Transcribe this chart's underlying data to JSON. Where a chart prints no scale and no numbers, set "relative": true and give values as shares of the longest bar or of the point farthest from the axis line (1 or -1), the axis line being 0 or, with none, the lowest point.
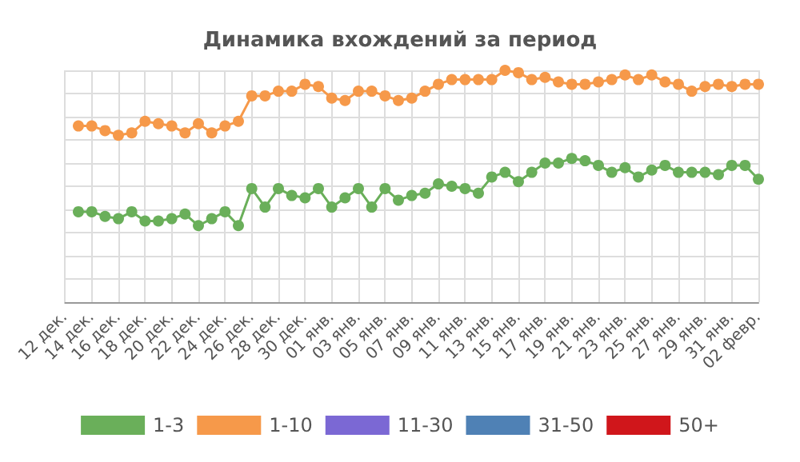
{
  "chart_data": {
    "type": "line",
    "title": "Динамика вхождений за период",
    "categories": [
      "12 дек.",
      null,
      "14 дек.",
      null,
      "16 дек.",
      null,
      "18 дек.",
      null,
      "20 дек.",
      null,
      "22 дек.",
      null,
      "24 дек.",
      null,
      "26 дек.",
      null,
      "28 дек.",
      null,
      "30 дек.",
      null,
      "01 янв.",
      null,
      "03 янв.",
      null,
      "05 янв.",
      null,
      "07 янв.",
      null,
      "09 янв.",
      null,
      "11 янв.",
      null,
      "13 янв.",
      null,
      "15 янв.",
      null,
      "17 янв.",
      null,
      "19 янв.",
      null,
      "21 янв.",
      null,
      "23 янв.",
      null,
      "25 янв.",
      null,
      "27 янв.",
      null,
      "29 янв.",
      null,
      "31 янв.",
      null,
      "02 февр."
    ],
    "relative": true,
    "series": [
      {
        "name": "1-3",
        "color": "#6aaf5a",
        "values": [
          null,
          0.39,
          0.39,
          0.37,
          0.36,
          0.39,
          0.35,
          0.35,
          0.36,
          0.38,
          0.33,
          0.36,
          0.39,
          0.33,
          0.49,
          0.41,
          0.49,
          0.46,
          0.45,
          0.49,
          0.41,
          0.45,
          0.49,
          0.41,
          0.49,
          0.44,
          0.46,
          0.47,
          0.51,
          0.5,
          0.49,
          0.47,
          0.54,
          0.56,
          0.52,
          0.56,
          0.6,
          0.6,
          0.62,
          0.61,
          0.59,
          0.56,
          0.58,
          0.54,
          0.57,
          0.59,
          0.56,
          0.56,
          0.56,
          0.55,
          0.59,
          0.59,
          0.53
        ]
      },
      {
        "name": "1-10",
        "color": "#f6994a",
        "values": [
          null,
          0.76,
          0.76,
          0.74,
          0.72,
          0.73,
          0.78,
          0.77,
          0.76,
          0.73,
          0.77,
          0.73,
          0.76,
          0.78,
          0.89,
          0.89,
          0.91,
          0.91,
          0.94,
          0.93,
          0.88,
          0.87,
          0.91,
          0.91,
          0.89,
          0.87,
          0.88,
          0.91,
          0.94,
          0.96,
          0.96,
          0.96,
          0.96,
          1.0,
          0.99,
          0.96,
          0.97,
          0.95,
          0.94,
          0.94,
          0.95,
          0.96,
          0.98,
          0.96,
          0.98,
          0.95,
          0.94,
          0.91,
          0.93,
          0.94,
          0.93,
          0.94,
          0.94
        ]
      },
      {
        "name": "11-30",
        "color": "#7b68d4",
        "values": [
          null,
          null,
          null,
          null,
          null,
          null,
          null,
          null,
          null,
          null,
          null,
          null,
          null,
          null,
          null,
          null,
          null,
          null,
          null,
          null,
          null,
          null,
          null,
          null,
          null,
          null,
          null,
          null,
          null,
          null,
          null,
          null,
          null,
          null,
          null,
          null,
          null,
          null,
          null,
          null,
          null,
          null,
          null,
          null,
          null,
          null,
          null,
          null,
          null,
          null,
          null,
          null,
          null
        ]
      },
      {
        "name": "31-50",
        "color": "#4f81b5",
        "values": [
          null,
          null,
          null,
          null,
          null,
          null,
          null,
          null,
          null,
          null,
          null,
          null,
          null,
          null,
          null,
          null,
          null,
          null,
          null,
          null,
          null,
          null,
          null,
          null,
          null,
          null,
          null,
          null,
          null,
          null,
          null,
          null,
          null,
          null,
          null,
          null,
          null,
          null,
          null,
          null,
          null,
          null,
          null,
          null,
          null,
          null,
          null,
          null,
          null,
          null,
          null,
          null,
          null
        ]
      },
      {
        "name": "50+",
        "color": "#d0161b",
        "values": [
          null,
          null,
          null,
          null,
          null,
          null,
          null,
          null,
          null,
          null,
          null,
          null,
          null,
          null,
          null,
          null,
          null,
          null,
          null,
          null,
          null,
          null,
          null,
          null,
          null,
          null,
          null,
          null,
          null,
          null,
          null,
          null,
          null,
          null,
          null,
          null,
          null,
          null,
          null,
          null,
          null,
          null,
          null,
          null,
          null,
          null,
          null,
          null,
          null,
          null,
          null,
          null,
          null
        ]
      }
    ],
    "grid": true,
    "legend": "bottom",
    "marker": "circle",
    "line_style": "solid"
  }
}
